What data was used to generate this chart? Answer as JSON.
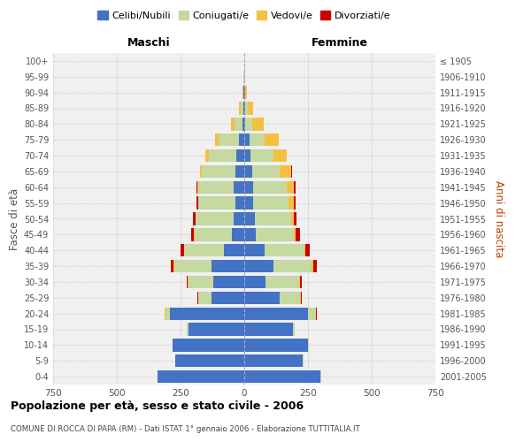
{
  "age_groups": [
    "0-4",
    "5-9",
    "10-14",
    "15-19",
    "20-24",
    "25-29",
    "30-34",
    "35-39",
    "40-44",
    "45-49",
    "50-54",
    "55-59",
    "60-64",
    "65-69",
    "70-74",
    "75-79",
    "80-84",
    "85-89",
    "90-94",
    "95-99",
    "100+"
  ],
  "birth_years": [
    "2001-2005",
    "1996-2000",
    "1991-1995",
    "1986-1990",
    "1981-1985",
    "1976-1980",
    "1971-1975",
    "1966-1970",
    "1961-1965",
    "1956-1960",
    "1951-1955",
    "1946-1950",
    "1941-1945",
    "1936-1940",
    "1931-1935",
    "1926-1930",
    "1921-1925",
    "1916-1920",
    "1911-1915",
    "1906-1910",
    "≤ 1905"
  ],
  "maschi": {
    "celibi": [
      340,
      270,
      280,
      220,
      290,
      130,
      120,
      130,
      80,
      50,
      40,
      35,
      40,
      35,
      30,
      20,
      8,
      5,
      2,
      1,
      0
    ],
    "coniugati": [
      2,
      2,
      2,
      5,
      20,
      50,
      100,
      145,
      155,
      145,
      150,
      145,
      140,
      130,
      110,
      80,
      30,
      8,
      3,
      1,
      0
    ],
    "vedovi": [
      0,
      0,
      0,
      0,
      2,
      2,
      2,
      2,
      2,
      2,
      2,
      2,
      4,
      8,
      12,
      15,
      15,
      8,
      2,
      0,
      0
    ],
    "divorziati": [
      0,
      0,
      0,
      0,
      0,
      2,
      5,
      10,
      12,
      12,
      8,
      4,
      4,
      2,
      2,
      0,
      0,
      0,
      0,
      0,
      0
    ]
  },
  "femmine": {
    "nubili": [
      300,
      230,
      250,
      190,
      250,
      140,
      85,
      115,
      80,
      45,
      40,
      35,
      35,
      30,
      25,
      20,
      5,
      5,
      2,
      1,
      0
    ],
    "coniugate": [
      2,
      2,
      2,
      8,
      30,
      80,
      130,
      150,
      155,
      150,
      145,
      140,
      130,
      110,
      90,
      60,
      25,
      8,
      3,
      1,
      0
    ],
    "vedove": [
      0,
      0,
      0,
      0,
      2,
      2,
      3,
      5,
      5,
      8,
      10,
      20,
      30,
      45,
      50,
      55,
      45,
      20,
      4,
      1,
      0
    ],
    "divorziate": [
      0,
      0,
      0,
      0,
      2,
      4,
      8,
      14,
      18,
      15,
      10,
      8,
      5,
      4,
      2,
      2,
      0,
      0,
      0,
      0,
      0
    ]
  },
  "colors": {
    "celibi": "#4472c4",
    "coniugati": "#c5d9a0",
    "vedovi": "#f5c042",
    "divorziati": "#cc0000"
  },
  "title": "Popolazione per età, sesso e stato civile - 2006",
  "subtitle": "COMUNE DI ROCCA DI PAPA (RM) - Dati ISTAT 1° gennaio 2006 - Elaborazione TUTTITALIA.IT",
  "xlabel_maschi": "Maschi",
  "xlabel_femmine": "Femmine",
  "ylabel_left": "Fasce di età",
  "ylabel_right": "Anni di nascita",
  "xlim": 750,
  "bg_color": "#ffffff",
  "grid_color": "#cccccc",
  "legend_labels": [
    "Celibi/Nubili",
    "Coniugati/e",
    "Vedovi/e",
    "Divorziati/e"
  ]
}
